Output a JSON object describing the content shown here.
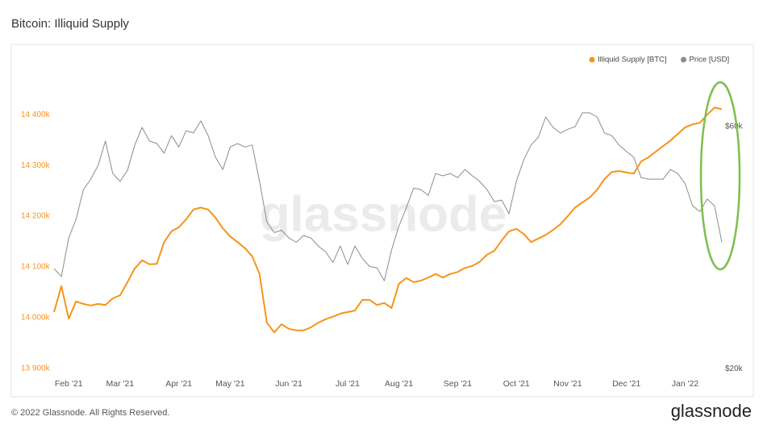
{
  "chart_data": {
    "type": "line",
    "title": "Bitcoin: Illiquid Supply",
    "watermark": "glassnode",
    "footer": "© 2022 Glassnode. All Rights Reserved.",
    "brand": "glassnode",
    "categories": [
      null,
      null,
      "Feb '21",
      null,
      null,
      null,
      null,
      null,
      null,
      "Mar '21",
      null,
      null,
      null,
      null,
      null,
      null,
      null,
      "Apr '21",
      null,
      null,
      null,
      null,
      null,
      null,
      "May '21",
      null,
      null,
      null,
      null,
      null,
      null,
      null,
      "Jun '21",
      null,
      null,
      null,
      null,
      null,
      null,
      null,
      "Jul '21",
      null,
      null,
      null,
      null,
      null,
      null,
      "Aug '21",
      null,
      null,
      null,
      null,
      null,
      null,
      null,
      "Sep '21",
      null,
      null,
      null,
      null,
      null,
      null,
      null,
      "Oct '21",
      null,
      null,
      null,
      null,
      null,
      null,
      "Nov '21",
      null,
      null,
      null,
      null,
      null,
      null,
      null,
      "Dec '21",
      null,
      null,
      null,
      null,
      null,
      null,
      null,
      "Jan '22",
      null,
      null,
      null,
      null,
      null
    ],
    "series": [
      {
        "name": "Illiquid Supply [BTC]",
        "color": "#f7931a",
        "axis": "y",
        "values": [
          14011000,
          14062000,
          13998000,
          14032000,
          14027000,
          14024000,
          14027000,
          14025000,
          14038000,
          14044000,
          14070000,
          14097000,
          14113000,
          14105000,
          14106000,
          14149000,
          14170000,
          14178000,
          14194000,
          14213000,
          14217000,
          14213000,
          14197000,
          14176000,
          14160000,
          14149000,
          14137000,
          14121000,
          14086000,
          13990000,
          13971000,
          13987000,
          13978000,
          13975000,
          13975000,
          13981000,
          13990000,
          13997000,
          14002000,
          14008000,
          14011000,
          14014000,
          14035000,
          14035000,
          14025000,
          14029000,
          14019000,
          14067000,
          14078000,
          14070000,
          14073000,
          14079000,
          14086000,
          14079000,
          14086000,
          14090000,
          14098000,
          14102000,
          14110000,
          14124000,
          14132000,
          14152000,
          14170000,
          14175000,
          14165000,
          14149000,
          14156000,
          14163000,
          14173000,
          14184000,
          14200000,
          14217000,
          14227000,
          14237000,
          14252000,
          14273000,
          14287000,
          14289000,
          14286000,
          14284000,
          14308000,
          14316000,
          14327000,
          14338000,
          14349000,
          14362000,
          14375000,
          14381000,
          14384000,
          14400000,
          14414000,
          14411000
        ]
      },
      {
        "name": "Price [USD]",
        "color": "#8c8c8c",
        "axis": "y2",
        "values": [
          31500,
          30400,
          36200,
          39400,
          45100,
          47300,
          50300,
          56200,
          48500,
          46800,
          49200,
          55200,
          59800,
          56200,
          55600,
          53200,
          57600,
          54700,
          58900,
          58300,
          61600,
          57600,
          52200,
          49400,
          54700,
          55600,
          54700,
          55200,
          46800,
          38900,
          37100,
          37500,
          36200,
          35500,
          36600,
          36200,
          34900,
          34000,
          32400,
          34900,
          32100,
          34900,
          33000,
          31800,
          31600,
          29800,
          34300,
          38200,
          41500,
          45400,
          45100,
          43900,
          48500,
          48000,
          48500,
          47600,
          49400,
          48000,
          46800,
          45100,
          42700,
          43000,
          40400,
          46800,
          51600,
          55200,
          57200,
          62700,
          59800,
          58300,
          59300,
          60000,
          63900,
          63900,
          62700,
          58300,
          57600,
          55200,
          53600,
          52200,
          47600,
          47300,
          47300,
          47300,
          49400,
          48500,
          46300,
          41900,
          40800,
          43200,
          41900,
          35500
        ]
      }
    ],
    "ylim": [
      13895000,
      14475000
    ],
    "yticks": [
      {
        "value": 13900000,
        "label": "13 900k"
      },
      {
        "value": 14000000,
        "label": "14 000k"
      },
      {
        "value": 14100000,
        "label": "14 100k"
      },
      {
        "value": 14200000,
        "label": "14 200k"
      },
      {
        "value": 14300000,
        "label": "14 300k"
      },
      {
        "value": 14400000,
        "label": "14 400k"
      }
    ],
    "y2lim": [
      19800,
      75300
    ],
    "y2ticks": [
      {
        "value": 20000,
        "label": "$20k"
      },
      {
        "value": 60000,
        "label": "$60k"
      }
    ],
    "y2log": true,
    "grid": false,
    "legend": "top-right"
  }
}
